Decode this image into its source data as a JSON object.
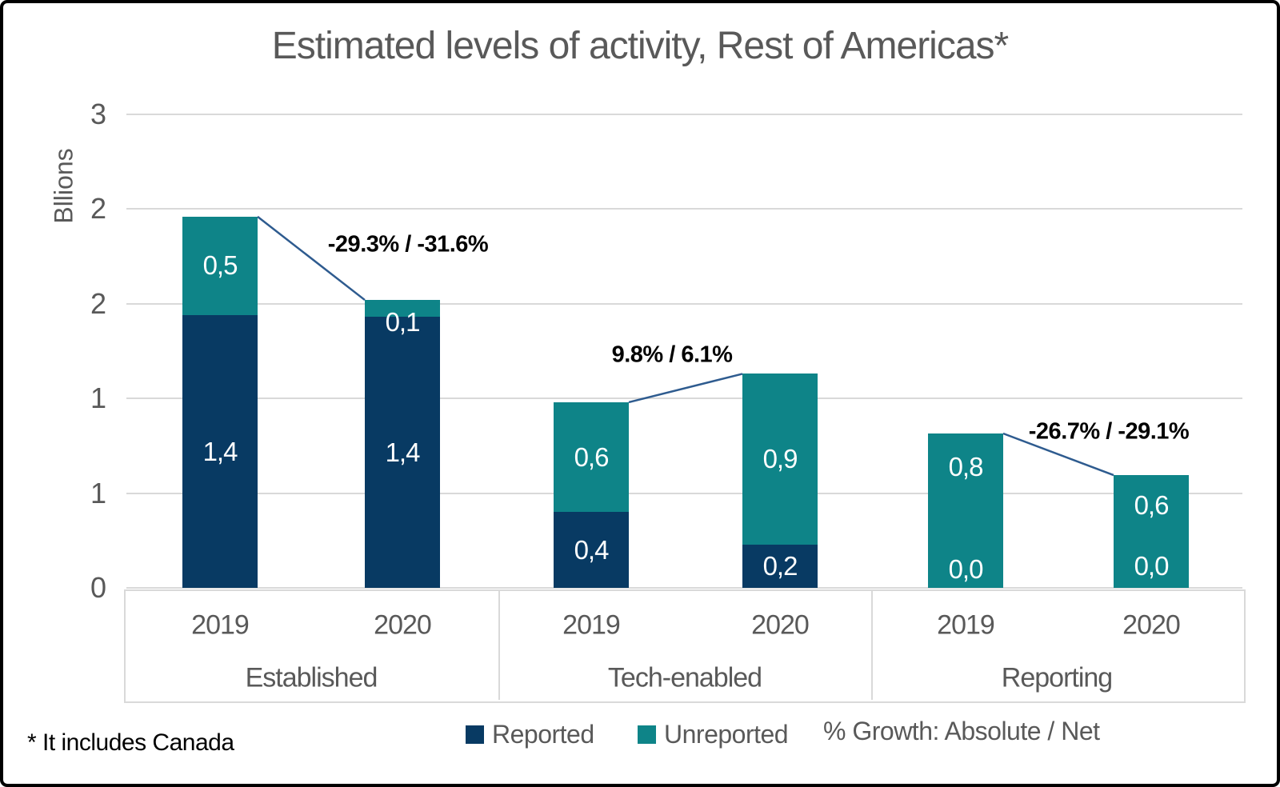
{
  "title": "Estimated levels of activity, Rest of Americas*",
  "footnote": "* It includes Canada",
  "y_axis": {
    "title": "Bllions",
    "ticks": [
      {
        "value": 2.5,
        "label": "3"
      },
      {
        "value": 2.0,
        "label": "2"
      },
      {
        "value": 1.5,
        "label": "2"
      },
      {
        "value": 1.0,
        "label": "1"
      },
      {
        "value": 0.5,
        "label": "1"
      },
      {
        "value": 0.0,
        "label": "0"
      }
    ]
  },
  "legend": {
    "reported_label": "Reported",
    "unreported_label": "Unreported",
    "growth_note": "% Growth: Absolute / Net"
  },
  "colors": {
    "reported": "#083A63",
    "unreported": "#0E8488",
    "grid": "#D9D9D9",
    "axis_text": "#595959",
    "connector": "#2E5B8F",
    "annotation_text": "#000000",
    "frame_border": "#000000"
  },
  "chart_data": {
    "type": "bar",
    "stacked": true,
    "title": "Estimated levels of activity, Rest of Americas*",
    "ylabel": "Bllions",
    "unit": "Billions",
    "ylim": [
      0,
      2.5
    ],
    "grid": true,
    "legend_position": "bottom",
    "series": [
      {
        "name": "Reported",
        "values": [
          1.4,
          1.4,
          0.4,
          0.2,
          0.0,
          0.0
        ]
      },
      {
        "name": "Unreported",
        "values": [
          0.5,
          0.1,
          0.6,
          0.9,
          0.8,
          0.6
        ]
      }
    ],
    "categories": [
      "2019",
      "2020",
      "2019",
      "2020",
      "2019",
      "2020"
    ],
    "groups": [
      {
        "label": "Established",
        "growth_label": "-29.3% / -31.6%",
        "bars": [
          {
            "year": "2019",
            "reported": {
              "label": "1,4",
              "value": 1.44
            },
            "unreported": {
              "label": "0,5",
              "value": 0.52
            }
          },
          {
            "year": "2020",
            "reported": {
              "label": "1,4",
              "value": 1.43
            },
            "unreported": {
              "label": "0,1",
              "value": 0.09
            }
          }
        ]
      },
      {
        "label": "Tech-enabled",
        "growth_label": "9.8% / 6.1%",
        "bars": [
          {
            "year": "2019",
            "reported": {
              "label": "0,4",
              "value": 0.4
            },
            "unreported": {
              "label": "0,6",
              "value": 0.58
            }
          },
          {
            "year": "2020",
            "reported": {
              "label": "0,2",
              "value": 0.23
            },
            "unreported": {
              "label": "0,9",
              "value": 0.9
            }
          }
        ]
      },
      {
        "label": "Reporting",
        "growth_label": "-26.7% / -29.1%",
        "bars": [
          {
            "year": "2019",
            "reported": {
              "label": "0,0",
              "value": 0.0
            },
            "unreported": {
              "label": "0,8",
              "value": 0.815
            }
          },
          {
            "year": "2020",
            "reported": {
              "label": "0,0",
              "value": 0.0
            },
            "unreported": {
              "label": "0,6",
              "value": 0.595
            }
          }
        ]
      }
    ]
  }
}
